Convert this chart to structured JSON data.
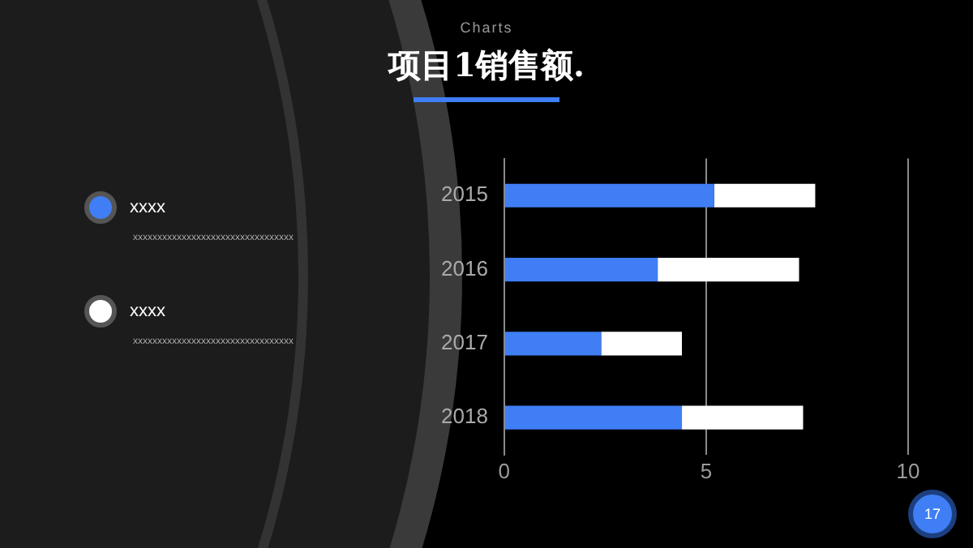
{
  "chart_data": {
    "type": "bar",
    "orientation": "horizontal",
    "stacked": true,
    "subtitle": "Charts",
    "title": "项目1销售额.",
    "categories": [
      "2015",
      "2016",
      "2017",
      "2018"
    ],
    "series": [
      {
        "name": "xxxx",
        "color": "#3f7ef5",
        "values": [
          5.2,
          3.8,
          2.4,
          4.4
        ]
      },
      {
        "name": "xxxx",
        "color": "#ffffff",
        "values": [
          2.5,
          3.5,
          2.0,
          3.0
        ]
      }
    ],
    "xlim": [
      0,
      10
    ],
    "xticks": [
      0,
      5,
      10
    ],
    "grid": "x",
    "legend": "left",
    "annotations": [
      "xxxxxxxxxxxxxxxxxxxxxxxxxxxxxxxxx",
      "xxxxxxxxxxxxxxxxxxxxxxxxxxxxxxxxx",
      "17"
    ]
  }
}
